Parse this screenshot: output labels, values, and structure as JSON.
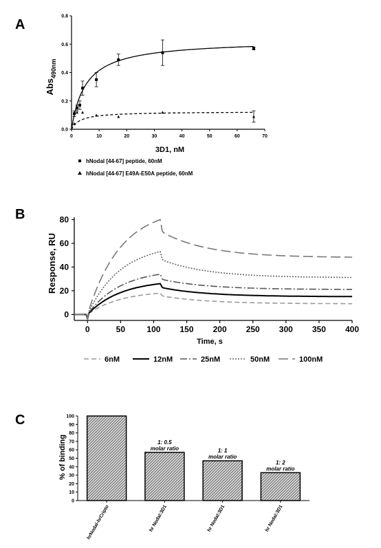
{
  "chart_data": [
    {
      "panel": "A",
      "type": "scatter",
      "ylabel_main": "Abs",
      "ylabel_sub": "490nm",
      "xlabel": "3D1, nM",
      "xlim": [
        0,
        70
      ],
      "ylim": [
        0,
        0.8
      ],
      "xticks": [
        "0",
        "10",
        "20",
        "30",
        "40",
        "50",
        "60",
        "70"
      ],
      "yticks": [
        "0.0",
        "0.2",
        "0.4",
        "0.6",
        "0.8"
      ],
      "xtick_values": [
        0,
        10,
        20,
        30,
        40,
        50,
        60,
        70
      ],
      "ytick_values": [
        0,
        0.2,
        0.4,
        0.6,
        0.8
      ],
      "legend_position": "below",
      "series": [
        {
          "name": "hNodal [44-67] peptide, 60nM",
          "marker": "square",
          "line": "solid",
          "x": [
            1,
            2,
            3,
            4,
            9,
            17,
            33,
            66
          ],
          "y": [
            0.11,
            0.15,
            0.17,
            0.29,
            0.35,
            0.49,
            0.54,
            0.57
          ],
          "err": [
            0.02,
            0.02,
            0.03,
            0.05,
            0.05,
            0.04,
            0.09,
            0.01
          ],
          "fit": {
            "bmax": 0.63,
            "kd": 5.2
          }
        },
        {
          "name": "hNodal [44-67] E49A-E50A peptide, 60nM",
          "marker": "triangle",
          "line": "dashed",
          "x": [
            1,
            2,
            4,
            9,
            17,
            33,
            66
          ],
          "y": [
            0.04,
            0.12,
            0.12,
            0.1,
            0.09,
            0.12,
            0.09
          ],
          "err": [
            0,
            0,
            0,
            0,
            0,
            0,
            0.04
          ],
          "fit": {
            "bmax": 0.125,
            "kd": 3.2
          }
        }
      ]
    },
    {
      "panel": "B",
      "type": "line",
      "ylabel": "Response, RU",
      "xlabel": "Time, s",
      "xlim": [
        -20,
        400
      ],
      "ylim": [
        -5,
        82
      ],
      "xticks": [
        "0",
        "50",
        "100",
        "150",
        "200",
        "250",
        "300",
        "350",
        "400"
      ],
      "yticks": [
        "0",
        "20",
        "40",
        "60",
        "80"
      ],
      "xtick_values": [
        0,
        50,
        100,
        150,
        200,
        250,
        300,
        350,
        400
      ],
      "ytick_values": [
        0,
        20,
        40,
        60,
        80
      ],
      "legend_position": "bottom",
      "injection_end_s": 110,
      "series": [
        {
          "name": "6nM",
          "peak": 18,
          "final": 9,
          "color": "#999999",
          "dash": "7,4"
        },
        {
          "name": "12nM",
          "peak": 26,
          "final": 15,
          "color": "#000000",
          "dash": ""
        },
        {
          "name": "25nM",
          "peak": 34,
          "final": 21,
          "color": "#555555",
          "dash": "10,3,2,3"
        },
        {
          "name": "50nM",
          "peak": 53,
          "final": 31,
          "color": "#666666",
          "dash": "2,2"
        },
        {
          "name": "100nM",
          "peak": 80,
          "final": 48,
          "color": "#777777",
          "dash": "14,6"
        }
      ]
    },
    {
      "panel": "C",
      "type": "bar",
      "ylabel": "% of binding",
      "ylim": [
        0,
        100
      ],
      "yticks": [
        "0",
        "10",
        "20",
        "30",
        "40",
        "50",
        "60",
        "70",
        "80",
        "90",
        "100"
      ],
      "ytick_values": [
        0,
        10,
        20,
        30,
        40,
        50,
        60,
        70,
        80,
        90,
        100
      ],
      "categories": [
        "hrNodal-hrCripto",
        "hr Nodal:3D1",
        "hr Nodal:3D1",
        "hr Nodal:3D1"
      ],
      "values": [
        100,
        57,
        47,
        33
      ],
      "bar_annotations": [
        "",
        "1: 0.5",
        "1: 1",
        "1: 2"
      ],
      "bar_annotation_sub": [
        "",
        "molar ratio",
        "molar ratio",
        "molar ratio"
      ]
    }
  ],
  "panel_labels": [
    "A",
    "B",
    "C"
  ]
}
